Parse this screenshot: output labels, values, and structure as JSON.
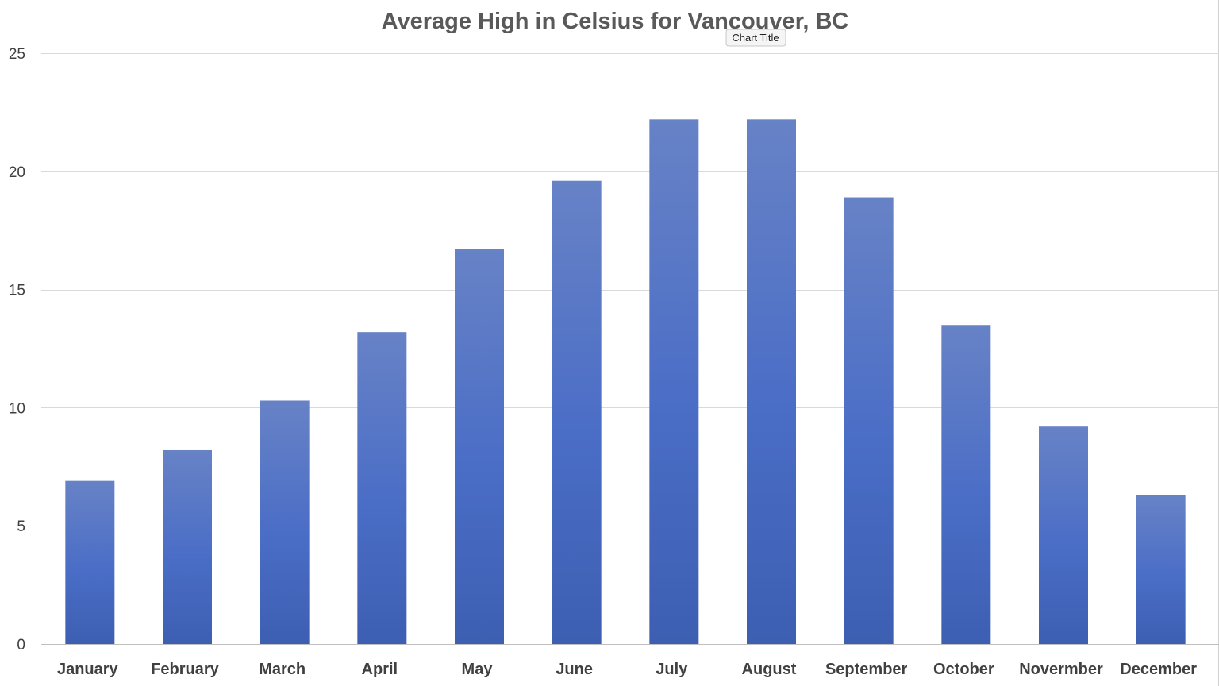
{
  "tooltip": {
    "text": "Chart Title"
  },
  "chart_data": {
    "type": "bar",
    "title": "Average High in Celsius for Vancouver, BC",
    "xlabel": "",
    "ylabel": "",
    "ylim": [
      0,
      25
    ],
    "yticks": [
      0,
      5,
      10,
      15,
      20,
      25
    ],
    "categories": [
      "January",
      "February",
      "March",
      "April",
      "May",
      "June",
      "July",
      "August",
      "September",
      "October",
      "Novermber",
      "December"
    ],
    "values": [
      6.9,
      8.2,
      10.3,
      13.2,
      16.7,
      19.6,
      22.2,
      22.2,
      18.9,
      13.5,
      9.2,
      6.3
    ],
    "grid": true,
    "legend": "none",
    "bar_color_top": "#6782c6",
    "bar_color_mid": "#4a6dc6",
    "bar_color_bottom": "#3d5fb2"
  }
}
